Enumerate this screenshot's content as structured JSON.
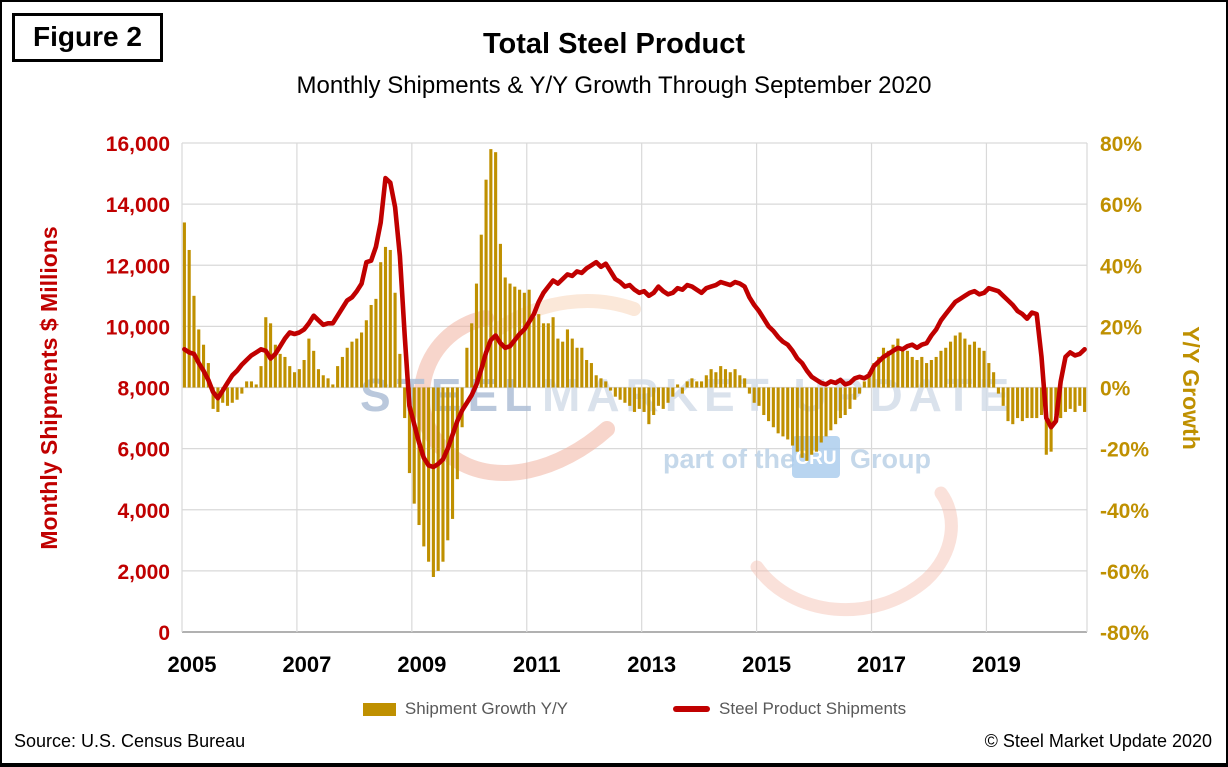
{
  "figure_label": "Figure 2",
  "title": "Total Steel Product",
  "subtitle": "Monthly Shipments & Y/Y Growth Through September 2020",
  "source": "Source: U.S. Census Bureau",
  "copyright": "© Steel Market Update 2020",
  "colors": {
    "line_red": "#C00000",
    "bar_gold": "#BF9000",
    "left_axis_text": "#C00000",
    "right_axis_text": "#BF9000",
    "x_axis_text": "#000000",
    "gridline": "#D9D9D9",
    "axis_line": "#A6A6A6",
    "legend_text": "#595959"
  },
  "legend": {
    "items": [
      {
        "label": "Shipment Growth Y/Y",
        "type": "bar",
        "color": "#BF9000"
      },
      {
        "label": "Steel Product Shipments",
        "type": "line",
        "color": "#C00000"
      }
    ]
  },
  "watermark": {
    "word1": "STEEL",
    "word2": "MARKET UPDATE",
    "tagline_prefix": "part of the",
    "tagline_box": "CRU",
    "tagline_suffix": "Group"
  },
  "chart_data": {
    "type": "bar+line combo",
    "start_month": "2005-01",
    "end_month": "2020-09",
    "months_per_point": 1,
    "left_axis": {
      "label": "Monthly Shipments $ Millions",
      "min": 0,
      "max": 16000,
      "step": 2000,
      "tick_labels": [
        "0",
        "2,000",
        "4,000",
        "6,000",
        "8,000",
        "10,000",
        "12,000",
        "14,000",
        "16,000"
      ]
    },
    "right_axis": {
      "label": "Y/Y Growth",
      "min": -80,
      "max": 80,
      "step": 20,
      "tick_labels": [
        "-80%",
        "-60%",
        "-40%",
        "-20%",
        "0%",
        "20%",
        "40%",
        "60%",
        "80%"
      ]
    },
    "x_axis": {
      "tick_labels": [
        "2005",
        "2007",
        "2009",
        "2011",
        "2013",
        "2015",
        "2017",
        "2019"
      ],
      "tick_interval_months": 24
    },
    "grid": true,
    "legend_position": "bottom",
    "series": [
      {
        "name": "Shipment Growth Y/Y",
        "type": "bar",
        "axis": "right",
        "unit": "%",
        "values": [
          54,
          45,
          30,
          19,
          14,
          8,
          -7,
          -8,
          -5,
          -6,
          -5,
          -4,
          -2,
          2,
          2,
          1,
          7,
          23,
          21,
          14,
          11,
          10,
          7,
          5,
          6,
          9,
          16,
          12,
          6,
          4,
          3,
          1,
          7,
          10,
          13,
          15,
          16,
          18,
          22,
          27,
          29,
          41,
          46,
          45,
          31,
          11,
          -10,
          -28,
          -38,
          -45,
          -52,
          -57,
          -62,
          -60,
          -57,
          -50,
          -43,
          -30,
          -13,
          13,
          21,
          34,
          50,
          68,
          78,
          77,
          47,
          36,
          34,
          33,
          32,
          31,
          32,
          23,
          24,
          21,
          21,
          23,
          16,
          15,
          19,
          16,
          13,
          13,
          9,
          8,
          4,
          3,
          2,
          -1,
          -3,
          -4,
          -5,
          -6,
          -8,
          -7,
          -8,
          -12,
          -9,
          -6,
          -7,
          -5,
          -3,
          1,
          -2,
          2,
          3,
          2,
          2,
          4,
          6,
          5,
          7,
          6,
          5,
          6,
          4,
          3,
          -2,
          -5,
          -6,
          -9,
          -11,
          -13,
          -15,
          -16,
          -17,
          -19,
          -21,
          -23,
          -24,
          -22,
          -21,
          -18,
          -16,
          -14,
          -12,
          -10,
          -9,
          -7,
          -4,
          -2,
          2,
          5,
          8,
          10,
          13,
          12,
          14,
          16,
          13,
          12,
          10,
          9,
          10,
          8,
          9,
          10,
          12,
          13,
          15,
          17,
          18,
          16,
          14,
          15,
          13,
          12,
          8,
          5,
          -2,
          -6,
          -11,
          -12,
          -10,
          -11,
          -10,
          -10,
          -10,
          -9,
          -22,
          -21,
          -9,
          -10,
          -8,
          -7,
          -8,
          -6,
          -8
        ]
      },
      {
        "name": "Steel Product Shipments",
        "type": "line",
        "axis": "left",
        "unit": "$ millions",
        "values": [
          9250,
          9150,
          9100,
          8800,
          8550,
          8250,
          7850,
          7650,
          7900,
          8150,
          8400,
          8550,
          8750,
          8900,
          9050,
          9150,
          9250,
          9200,
          8950,
          9100,
          9350,
          9600,
          9800,
          9750,
          9800,
          9900,
          10100,
          10350,
          10200,
          10050,
          10100,
          10100,
          10350,
          10600,
          10850,
          10950,
          11150,
          11400,
          12100,
          12150,
          12600,
          13400,
          14850,
          14700,
          13900,
          12300,
          9700,
          7400,
          6800,
          6200,
          5700,
          5450,
          5400,
          5500,
          5650,
          6000,
          6450,
          6900,
          7250,
          7500,
          7750,
          8100,
          8600,
          9150,
          9550,
          9700,
          9450,
          9300,
          9350,
          9550,
          9750,
          9900,
          10150,
          10400,
          10800,
          11100,
          11300,
          11500,
          11400,
          11550,
          11700,
          11650,
          11800,
          11750,
          11900,
          12000,
          12100,
          11950,
          12050,
          11800,
          11550,
          11450,
          11300,
          11350,
          11200,
          11100,
          11150,
          11000,
          11100,
          11300,
          11150,
          11050,
          11100,
          11250,
          11200,
          11350,
          11300,
          11200,
          11100,
          11250,
          11300,
          11350,
          11450,
          11400,
          11350,
          11450,
          11400,
          11300,
          10950,
          10700,
          10500,
          10250,
          10000,
          9850,
          9650,
          9500,
          9400,
          9200,
          8950,
          8800,
          8550,
          8350,
          8250,
          8150,
          8100,
          8200,
          8150,
          8250,
          8100,
          8150,
          8300,
          8350,
          8300,
          8400,
          8700,
          8850,
          9000,
          9100,
          9200,
          9300,
          9250,
          9350,
          9400,
          9300,
          9400,
          9450,
          9700,
          9900,
          10200,
          10400,
          10600,
          10800,
          10900,
          11000,
          11100,
          11150,
          11050,
          11100,
          11250,
          11200,
          11150,
          11000,
          10850,
          10700,
          10500,
          10400,
          10250,
          10450,
          10400,
          9000,
          7000,
          6700,
          6900,
          8200,
          9000,
          9150,
          9050,
          9100,
          9250
        ]
      }
    ]
  }
}
